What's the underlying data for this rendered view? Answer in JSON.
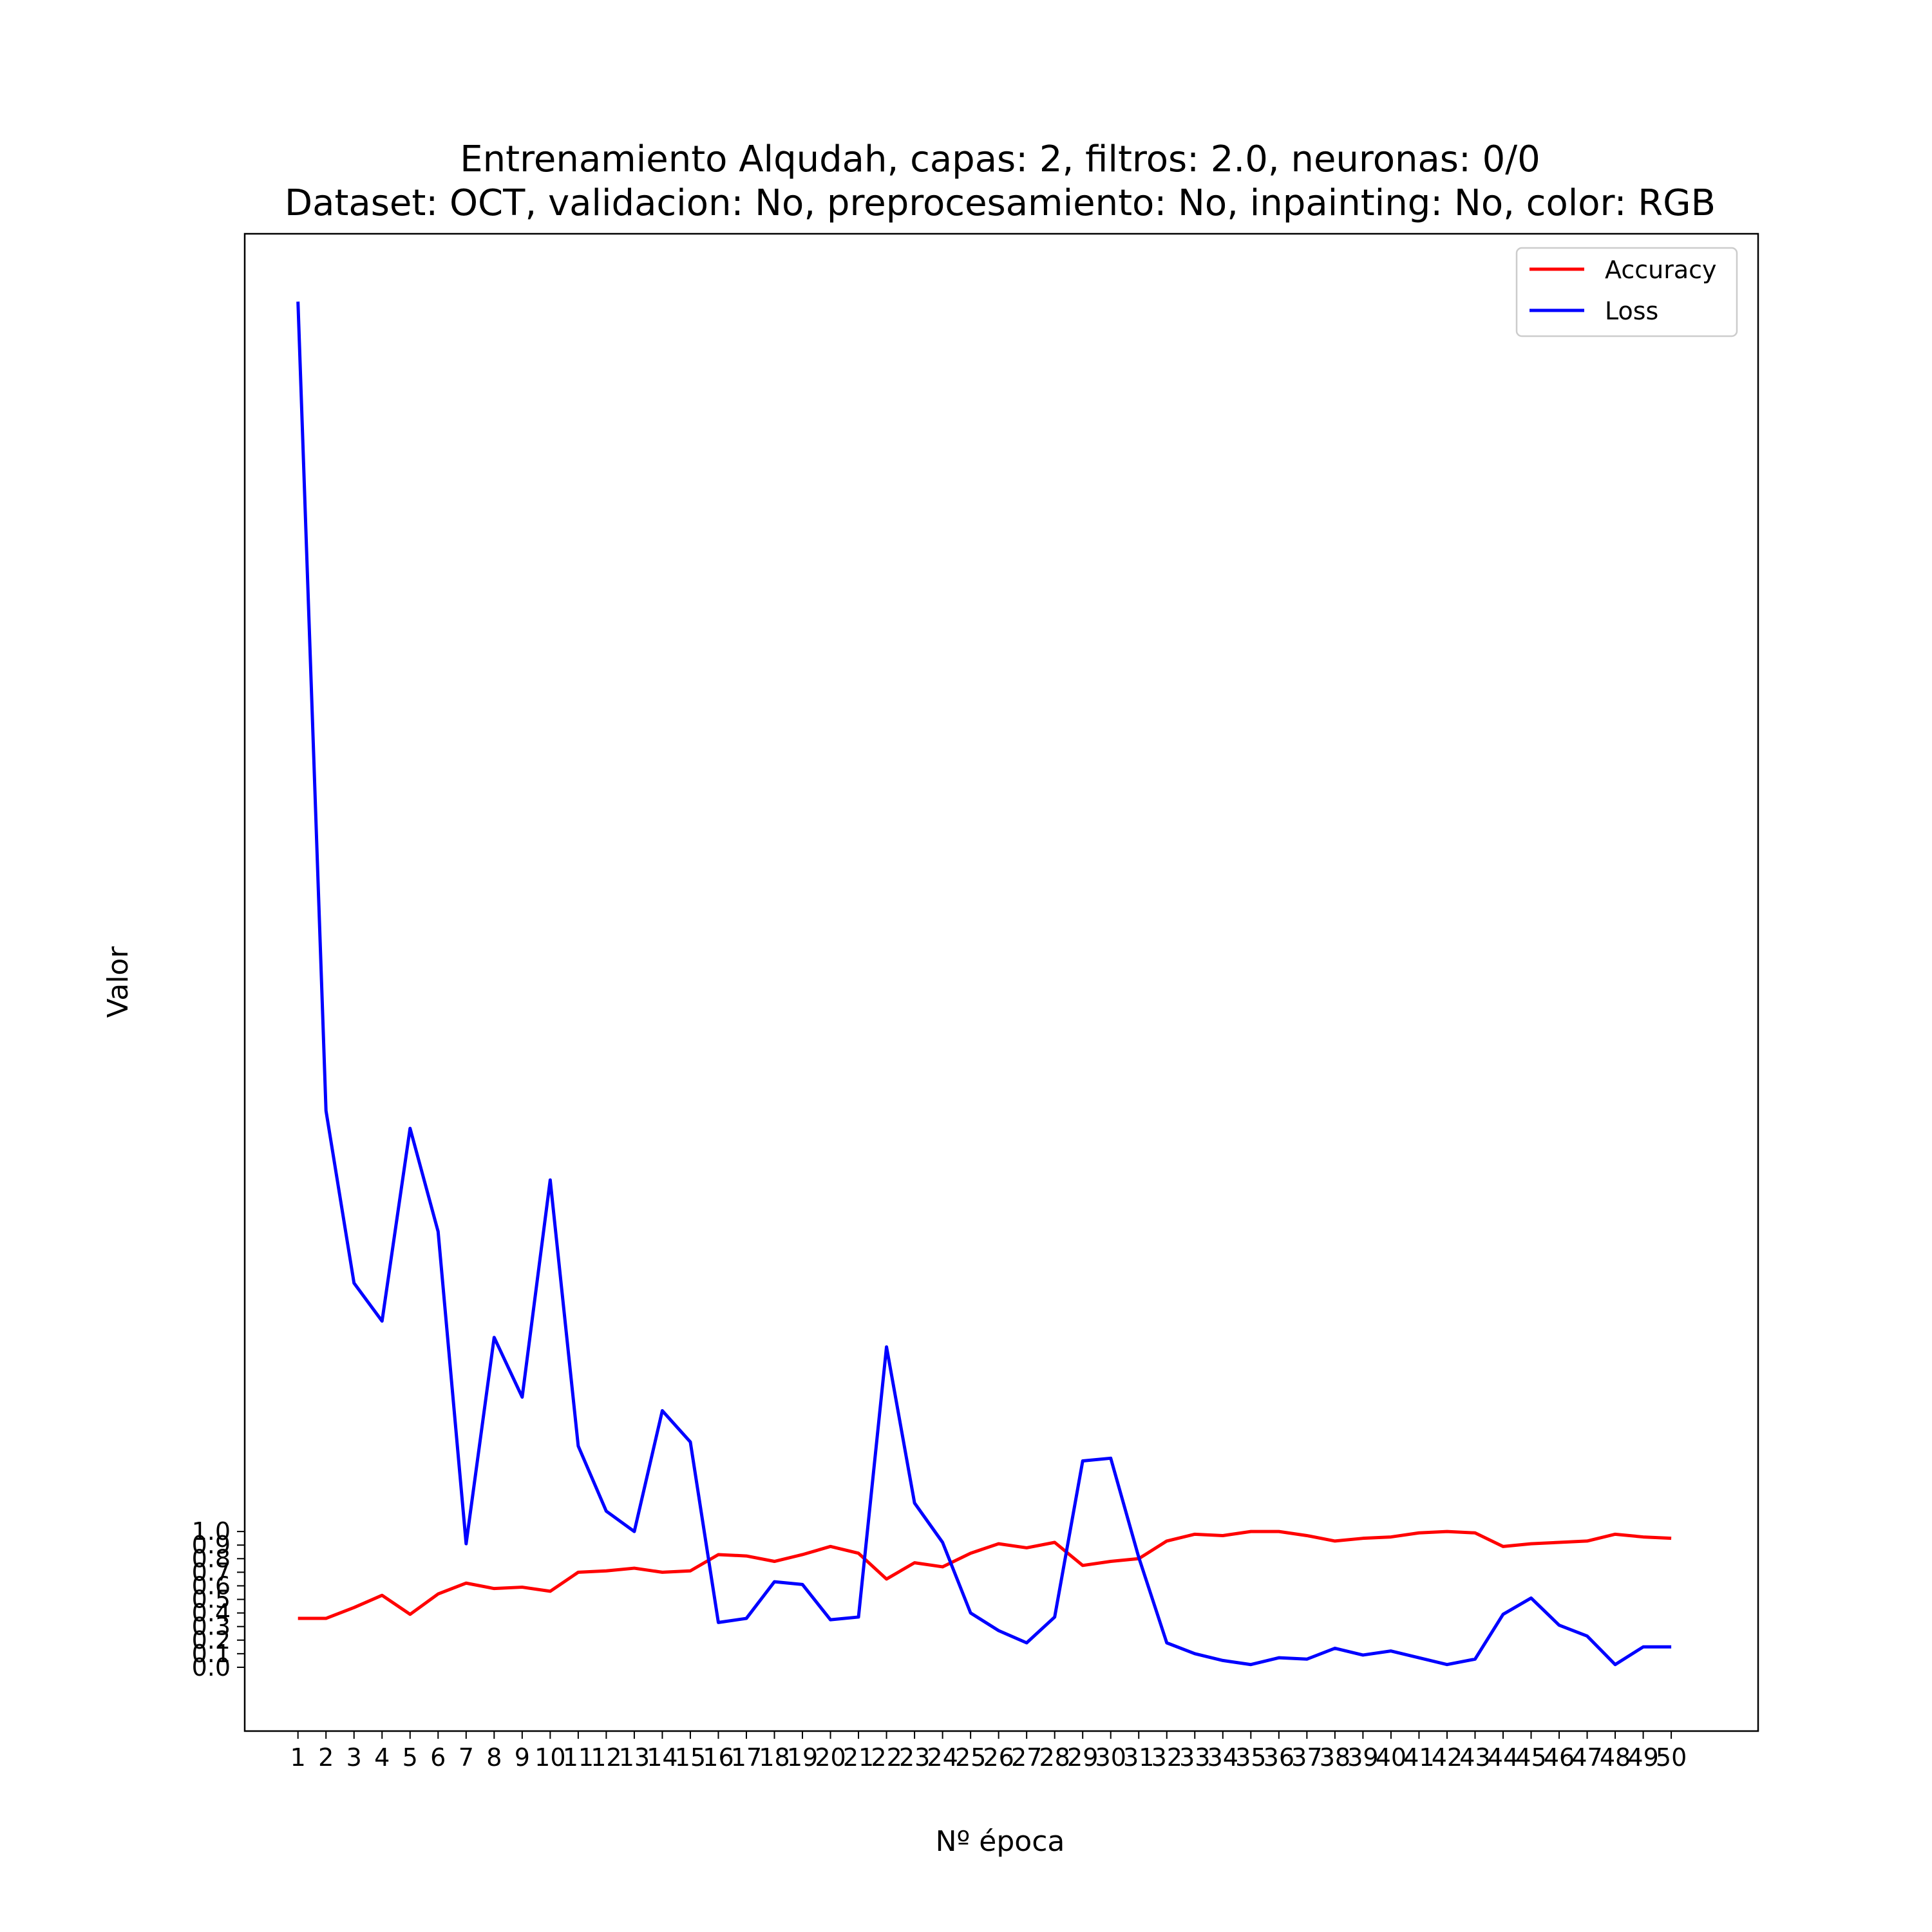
{
  "chart_data": {
    "type": "line",
    "title": "Entrenamiento Alqudah, capas: 2, filtros: 2.0, neuronas: 0/0",
    "subtitle": "Dataset: OCT, validacion: No, preprocesamiento: No, inpainting: No, color: RGB",
    "xlabel": "Nº época",
    "ylabel": "Valor",
    "x": [
      1,
      2,
      3,
      4,
      5,
      6,
      7,
      8,
      9,
      10,
      11,
      12,
      13,
      14,
      15,
      16,
      17,
      18,
      19,
      20,
      21,
      22,
      23,
      24,
      25,
      26,
      27,
      28,
      29,
      30,
      31,
      32,
      33,
      34,
      35,
      36,
      37,
      38,
      39,
      40,
      41,
      42,
      43,
      44,
      45,
      46,
      47,
      48,
      49,
      50
    ],
    "x_ticks": [
      "1",
      "2",
      "3",
      "4",
      "5",
      "6",
      "7",
      "8",
      "9",
      "10",
      "11",
      "12",
      "13",
      "14",
      "15",
      "16",
      "17",
      "18",
      "19",
      "20",
      "21",
      "22",
      "23",
      "24",
      "25",
      "26",
      "27",
      "28",
      "29",
      "30",
      "31",
      "32",
      "33",
      "34",
      "35",
      "36",
      "37",
      "38",
      "39",
      "40",
      "41",
      "42",
      "43",
      "44",
      "45",
      "46",
      "47",
      "48",
      "49",
      "50"
    ],
    "y_ticks": [
      "0.0",
      "0.1",
      "0.2",
      "0.3",
      "0.4",
      "0.5",
      "0.6",
      "0.7",
      "0.8",
      "0.9",
      "1.0"
    ],
    "y_tick_values": [
      0.0,
      0.1,
      0.2,
      0.3,
      0.4,
      0.5,
      0.6,
      0.7,
      0.8,
      0.9,
      1.0
    ],
    "xlim": [
      -0.9,
      53.1
    ],
    "ylim": [
      -0.47,
      10.56
    ],
    "grid": false,
    "legend_position": "top-right",
    "series": [
      {
        "name": "Accuracy",
        "color": "#ff0000",
        "values": [
          0.36,
          0.36,
          0.44,
          0.53,
          0.39,
          0.54,
          0.62,
          0.58,
          0.59,
          0.56,
          0.7,
          0.71,
          0.73,
          0.7,
          0.71,
          0.83,
          0.82,
          0.78,
          0.83,
          0.89,
          0.84,
          0.65,
          0.77,
          0.74,
          0.84,
          0.91,
          0.88,
          0.92,
          0.75,
          0.78,
          0.8,
          0.93,
          0.98,
          0.97,
          1.0,
          1.0,
          0.97,
          0.93,
          0.95,
          0.96,
          0.99,
          1.0,
          0.99,
          0.89,
          0.91,
          0.92,
          0.93,
          0.98,
          0.96,
          0.95
        ]
      },
      {
        "name": "Loss",
        "color": "#0000ff",
        "values": [
          10.06,
          4.1,
          2.83,
          2.55,
          3.97,
          3.21,
          0.91,
          2.43,
          1.99,
          3.59,
          1.63,
          1.15,
          1.0,
          1.89,
          1.66,
          0.33,
          0.36,
          0.63,
          0.61,
          0.35,
          0.37,
          2.36,
          1.21,
          0.92,
          0.4,
          0.27,
          0.18,
          0.37,
          1.52,
          1.54,
          0.81,
          0.18,
          0.1,
          0.05,
          0.02,
          0.07,
          0.06,
          0.14,
          0.09,
          0.12,
          0.07,
          0.02,
          0.06,
          0.39,
          0.51,
          0.31,
          0.23,
          0.02,
          0.15,
          0.15
        ]
      }
    ]
  }
}
